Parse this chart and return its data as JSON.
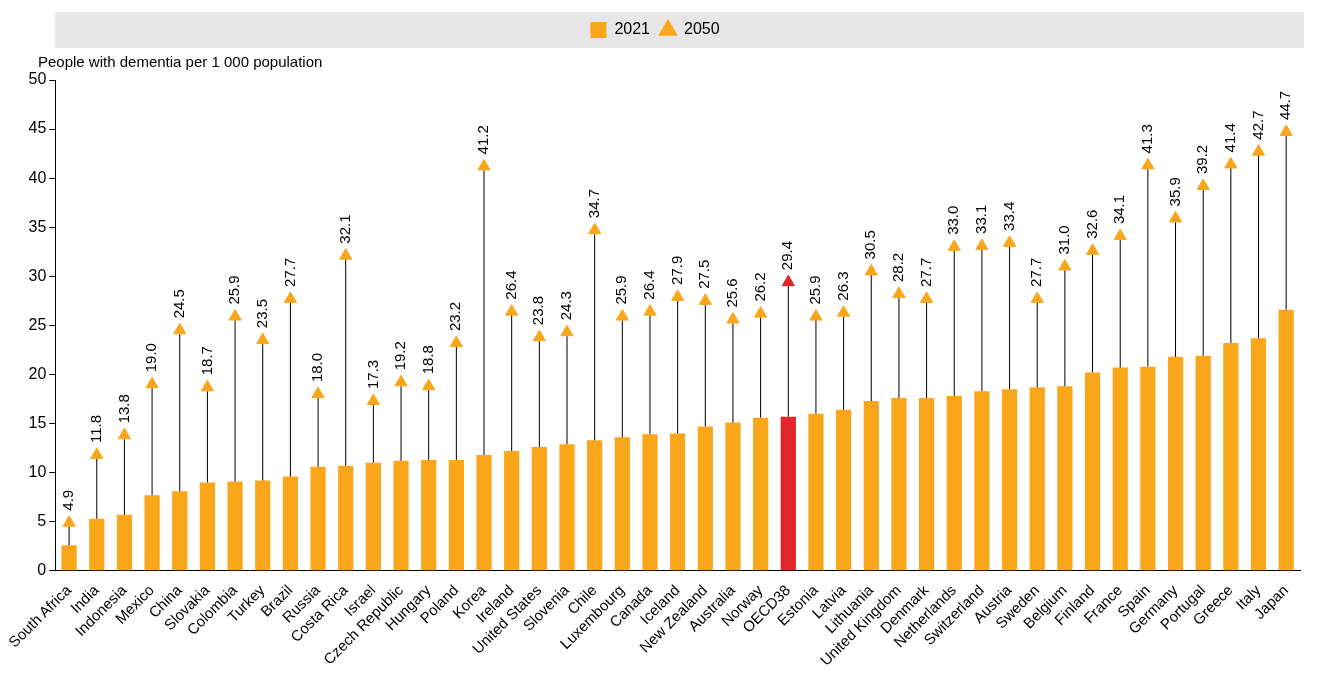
{
  "chart_data": {
    "type": "bar",
    "ylabel": "People with dementia per 1 000 population",
    "categories": [
      "South Africa",
      "India",
      "Indonesia",
      "Mexico",
      "China",
      "Slovakia",
      "Colombia",
      "Turkey",
      "Brazil",
      "Russia",
      "Costa Rica",
      "Israel",
      "Czech Republic",
      "Hungary",
      "Poland",
      "Korea",
      "Ireland",
      "United States",
      "Slovenia",
      "Chile",
      "Luxembourg",
      "Canada",
      "Iceland",
      "New Zealand",
      "Australia",
      "Norway",
      "OECD38",
      "Estonia",
      "Latvia",
      "Lithuania",
      "United Kingdom",
      "Denmark",
      "Netherlands",
      "Switzerland",
      "Austria",
      "Sweden",
      "Belgium",
      "Finland",
      "France",
      "Spain",
      "Germany",
      "Portugal",
      "Greece",
      "Italy",
      "Japan"
    ],
    "series": [
      {
        "name": "2021",
        "color": "#f9a61a",
        "colors": [
          "#f9a61a",
          "#f9a61a",
          "#f9a61a",
          "#f9a61a",
          "#f9a61a",
          "#f9a61a",
          "#f9a61a",
          "#f9a61a",
          "#f9a61a",
          "#f9a61a",
          "#f9a61a",
          "#f9a61a",
          "#f9a61a",
          "#f9a61a",
          "#f9a61a",
          "#f9a61a",
          "#f9a61a",
          "#f9a61a",
          "#f9a61a",
          "#f9a61a",
          "#f9a61a",
          "#f9a61a",
          "#f9a61a",
          "#f9a61a",
          "#f9a61a",
          "#f9a61a",
          "#e2242b",
          "#f9a61a",
          "#f9a61a",
          "#f9a61a",
          "#f9a61a",
          "#f9a61a",
          "#f9a61a",
          "#f9a61a",
          "#f9a61a",
          "#f9a61a",
          "#f9a61a",
          "#f9a61a",
          "#f9a61a",
          "#f9a61a",
          "#f9a61a",
          "#f9a61a",
          "#f9a61a",
          "#f9a61a",
          "#f9a61a"
        ],
        "values": [
          2.6,
          5.3,
          5.7,
          7.7,
          8.1,
          9.0,
          9.1,
          9.2,
          9.6,
          10.6,
          10.7,
          11.0,
          11.2,
          11.3,
          11.3,
          11.8,
          12.2,
          12.6,
          12.9,
          13.3,
          13.6,
          13.9,
          14.0,
          14.7,
          15.1,
          15.6,
          15.7,
          16.0,
          16.4,
          17.3,
          17.6,
          17.6,
          17.8,
          18.3,
          18.5,
          18.7,
          18.8,
          20.2,
          20.7,
          20.8,
          21.8,
          21.9,
          23.2,
          23.7,
          26.6
        ]
      },
      {
        "name": "2050",
        "type": "scatter",
        "marker": "triangle",
        "color": "#f9a61a",
        "colors": [
          "#f9a61a",
          "#f9a61a",
          "#f9a61a",
          "#f9a61a",
          "#f9a61a",
          "#f9a61a",
          "#f9a61a",
          "#f9a61a",
          "#f9a61a",
          "#f9a61a",
          "#f9a61a",
          "#f9a61a",
          "#f9a61a",
          "#f9a61a",
          "#f9a61a",
          "#f9a61a",
          "#f9a61a",
          "#f9a61a",
          "#f9a61a",
          "#f9a61a",
          "#f9a61a",
          "#f9a61a",
          "#f9a61a",
          "#f9a61a",
          "#f9a61a",
          "#f9a61a",
          "#e2242b",
          "#f9a61a",
          "#f9a61a",
          "#f9a61a",
          "#f9a61a",
          "#f9a61a",
          "#f9a61a",
          "#f9a61a",
          "#f9a61a",
          "#f9a61a",
          "#f9a61a",
          "#f9a61a",
          "#f9a61a",
          "#f9a61a",
          "#f9a61a",
          "#f9a61a",
          "#f9a61a",
          "#f9a61a",
          "#f9a61a"
        ],
        "values": [
          4.9,
          11.8,
          13.8,
          19.0,
          24.5,
          18.7,
          25.9,
          23.5,
          27.7,
          18.0,
          32.1,
          17.3,
          19.2,
          18.8,
          23.2,
          41.2,
          26.4,
          23.8,
          24.3,
          34.7,
          25.9,
          26.4,
          27.9,
          27.5,
          25.6,
          26.2,
          29.4,
          25.9,
          26.3,
          30.5,
          28.2,
          27.7,
          33.0,
          33.1,
          33.4,
          27.7,
          31.0,
          32.6,
          34.1,
          41.3,
          35.9,
          39.2,
          41.4,
          42.7,
          44.7
        ],
        "value_labels": [
          "4.9",
          "11.8",
          "13.8",
          "19.0",
          "24.5",
          "18.7",
          "25.9",
          "23.5",
          "27.7",
          "18.0",
          "32.1",
          "17.3",
          "19.2",
          "18.8",
          "23.2",
          "41.2",
          "26.4",
          "23.8",
          "24.3",
          "34.7",
          "25.9",
          "26.4",
          "27.9",
          "27.5",
          "25.6",
          "26.2",
          "29.4",
          "25.9",
          "26.3",
          "30.5",
          "28.2",
          "27.7",
          "33.0",
          "33.1",
          "33.4",
          "27.7",
          "31.0",
          "32.6",
          "34.1",
          "41.3",
          "35.9",
          "39.2",
          "41.4",
          "42.7",
          "44.7"
        ]
      }
    ],
    "ylim": [
      0,
      50
    ],
    "yticks": [
      0,
      5,
      10,
      15,
      20,
      25,
      30,
      35,
      40,
      45,
      50
    ],
    "grid": false,
    "legend": "top"
  }
}
